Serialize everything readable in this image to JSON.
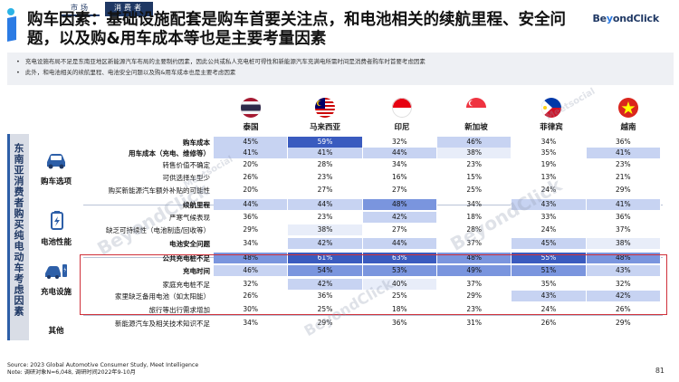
{
  "breadcrumb": [
    "市场",
    "消费者"
  ],
  "title": "购车因素：基础设施配套是购车首要关注点，和电池相关的续航里程、安全问题，以及购&用车成本等也是主要考量因素",
  "brand": {
    "prefix": "Be",
    "mark": "y",
    "suffix": "ondClick"
  },
  "bullets": [
    "充电设施布局不足是东南亚地区新能源汽车布局的主要制约因素，因此公共或私人充电桩可得性和新能源汽车充满电所需时间是消费者购车时首要考虑因素",
    "此外，和电池相关的续航里程、电池安全问题以及购&用车成本也是主要考虑因素"
  ],
  "watermarks": [
    "BeyondClick",
    "BeyondClick",
    "BeyondClick",
    "Meetsocial",
    "Meetsocial"
  ],
  "vertical_banner": "东南亚消费者购买纯电动车考虑因素",
  "countries": [
    {
      "name": "泰国",
      "flag": "thailand-flag-icon"
    },
    {
      "name": "马来西亚",
      "flag": "malaysia-flag-icon"
    },
    {
      "name": "印尼",
      "flag": "indonesia-flag-icon"
    },
    {
      "name": "新加坡",
      "flag": "singapore-flag-icon"
    },
    {
      "name": "菲律宾",
      "flag": "philippines-flag-icon"
    },
    {
      "name": "越南",
      "flag": "vietnam-flag-icon"
    }
  ],
  "categories": [
    {
      "label": "购车选项",
      "icon": "car-icon"
    },
    {
      "label": "电池性能",
      "icon": "battery-icon"
    },
    {
      "label": "充电设施",
      "icon": "charging-car-icon"
    },
    {
      "label": "其他",
      "icon": ""
    }
  ],
  "rows": [
    {
      "label": "购车成本",
      "bold": true,
      "values": [
        "45%",
        "59%",
        "32%",
        "46%",
        "34%",
        "36%"
      ]
    },
    {
      "label": "用车成本（充电、维修等）",
      "bold": true,
      "values": [
        "41%",
        "41%",
        "44%",
        "38%",
        "35%",
        "41%"
      ]
    },
    {
      "label": "转售价值不确定",
      "bold": false,
      "values": [
        "20%",
        "28%",
        "34%",
        "23%",
        "19%",
        "23%"
      ]
    },
    {
      "label": "可供选择车型少",
      "bold": false,
      "values": [
        "26%",
        "23%",
        "16%",
        "15%",
        "13%",
        "21%"
      ]
    },
    {
      "label": "购买新能源汽车额外补贴的可能性",
      "bold": false,
      "values": [
        "20%",
        "27%",
        "27%",
        "25%",
        "24%",
        "29%"
      ]
    },
    {
      "label": "续航里程",
      "bold": true,
      "values": [
        "44%",
        "44%",
        "48%",
        "34%",
        "43%",
        "41%"
      ]
    },
    {
      "label": "严寒气候表现",
      "bold": false,
      "values": [
        "36%",
        "23%",
        "42%",
        "18%",
        "33%",
        "36%"
      ]
    },
    {
      "label": "缺乏可持续性（电池制造/回收等）",
      "bold": false,
      "values": [
        "29%",
        "38%",
        "27%",
        "28%",
        "24%",
        "37%"
      ]
    },
    {
      "label": "电池安全问题",
      "bold": true,
      "values": [
        "34%",
        "42%",
        "44%",
        "37%",
        "45%",
        "38%"
      ]
    },
    {
      "label": "公共充电桩不足",
      "bold": true,
      "values": [
        "48%",
        "61%",
        "63%",
        "48%",
        "55%",
        "48%"
      ]
    },
    {
      "label": "充电时间",
      "bold": true,
      "values": [
        "46%",
        "54%",
        "53%",
        "49%",
        "51%",
        "43%"
      ]
    },
    {
      "label": "家庭充电桩不足",
      "bold": false,
      "values": [
        "32%",
        "42%",
        "40%",
        "37%",
        "35%",
        "32%"
      ]
    },
    {
      "label": "家里缺乏备用电池（如太阳能）",
      "bold": false,
      "values": [
        "26%",
        "36%",
        "25%",
        "29%",
        "43%",
        "42%"
      ]
    },
    {
      "label": "旅行等出行需求增加",
      "bold": false,
      "values": [
        "30%",
        "25%",
        "18%",
        "23%",
        "24%",
        "26%"
      ]
    },
    {
      "label": "新能源汽车及相关技术知识不足",
      "bold": false,
      "values": [
        "34%",
        "29%",
        "36%",
        "31%",
        "26%",
        "29%"
      ]
    }
  ],
  "colors": {
    "dark": "#3a5bbf",
    "mid": "#7a95de",
    "light": "#c7d3f2",
    "pale": "#e8edf9",
    "navy": "#1f3864",
    "highlight": "#d0303a"
  },
  "source": "Source: 2023 Global Automotive Consumer Study, Meet Intelligence",
  "note": "Note: 调研对象N=6,048, 调研时间2022年9-10月",
  "page_number": "81"
}
